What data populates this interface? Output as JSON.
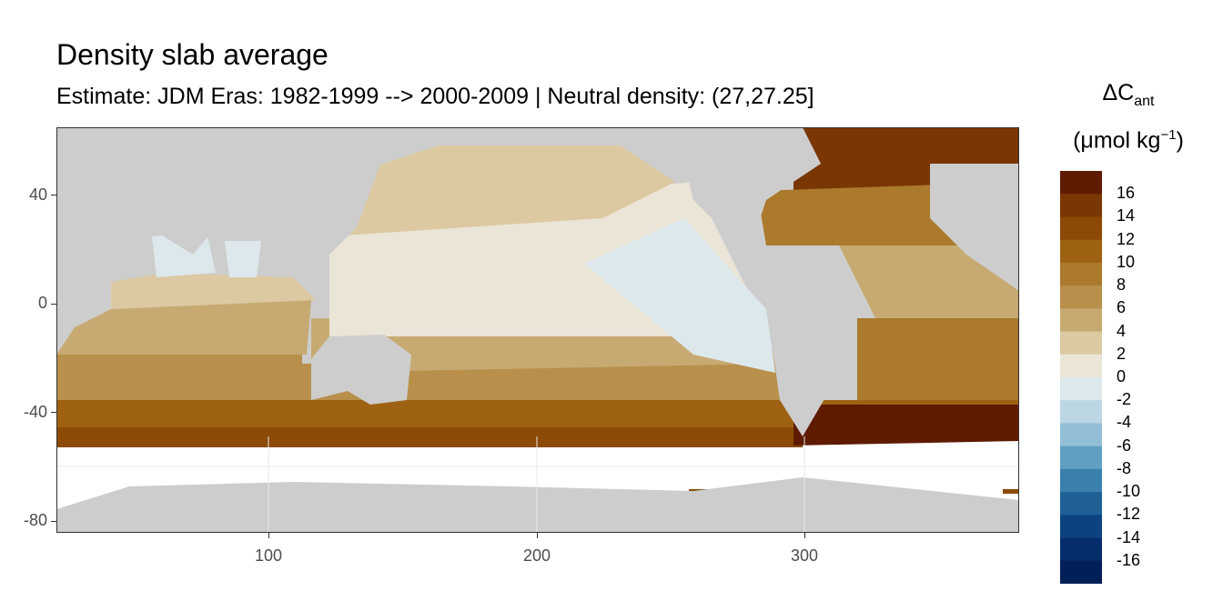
{
  "title": "Density slab average",
  "subtitle": "Estimate: JDM Eras: 1982-1999 --> 2000-2009 | Neutral density: (27,27.25]",
  "legend": {
    "title_main": "ΔC",
    "title_sub": "ant",
    "unit_prefix": "(μmol kg",
    "unit_sup": "−1",
    "unit_suffix": ")",
    "labels": [
      "16",
      "14",
      "12",
      "10",
      "8",
      "6",
      "4",
      "2",
      "0",
      "-2",
      "-4",
      "-6",
      "-8",
      "-10",
      "-12",
      "-14",
      "-16"
    ],
    "colors": [
      "#5e1b00",
      "#7a3603",
      "#8c4a06",
      "#9f6112",
      "#ab7a2d",
      "#b8904c",
      "#c7aa72",
      "#dcc9a2",
      "#ebe5d8",
      "#dde8ec",
      "#bcd6e4",
      "#92bfd7",
      "#609fc2",
      "#3a80af",
      "#1f6096",
      "#0d4280",
      "#052c6b",
      "#031f58"
    ]
  },
  "colors": {
    "land": "#cdcdcd",
    "nodata": "#ffffff",
    "grid": "#ebebeb",
    "panel_border": "#333333"
  },
  "chart_data": {
    "type": "heatmap",
    "title": "Density slab average",
    "subtitle": "Estimate: JDM Eras: 1982-1999 --> 2000-2009 | Neutral density: (27,27.25]",
    "xlabel": "",
    "ylabel": "",
    "x_ticks": [
      100,
      200,
      300
    ],
    "y_ticks": [
      40,
      0,
      -40,
      -80
    ],
    "xlim": [
      20,
      380
    ],
    "ylim": [
      -85,
      65
    ],
    "legend_title": "ΔCant (μmol kg−1)",
    "value_range": [
      -18,
      18
    ],
    "bin_width": 2,
    "pattern": "Positive values (brown) dominate the Southern Hemisphere band 35°S–55°S and the North Atlantic (>16 near 60°N and ~50°S in the South Atlantic); near-zero to slightly negative values (light blue) in the tropical/eastern Pacific and Arabian Sea/Bay of Bengal; no data south of ~55°S except Antarctic shelf patches."
  }
}
